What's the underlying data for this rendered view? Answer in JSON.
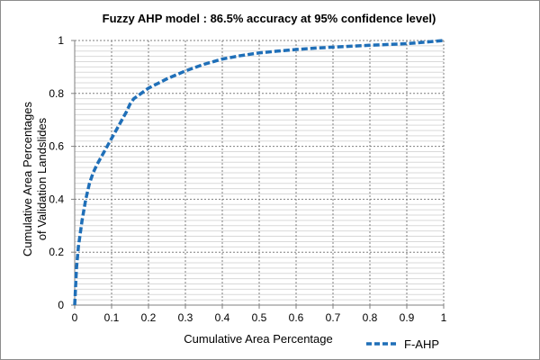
{
  "chart_data": {
    "type": "line",
    "title": "Fuzzy AHP model : 86.5% accuracy at 95% confidence level)",
    "xlabel": "Cumulative Area Percentage",
    "ylabel_lines": [
      "Cumulative Area Percentages",
      "of Validation Landslides"
    ],
    "xlim": [
      0,
      1
    ],
    "ylim": [
      0,
      1
    ],
    "x_ticks": [
      0,
      0.1,
      0.2,
      0.3,
      0.4,
      0.5,
      0.6,
      0.7,
      0.8,
      0.9,
      1
    ],
    "x_tick_labels": [
      "0",
      "0.1",
      "0.2",
      "0.3",
      "0.4",
      "0.5",
      "0.6",
      "0.7",
      "0.8",
      "0.9",
      "1"
    ],
    "y_ticks": [
      0,
      0.2,
      0.4,
      0.6,
      0.8,
      1
    ],
    "y_tick_labels": [
      "0",
      "0.2",
      "0.4",
      "0.6",
      "0.8",
      "1"
    ],
    "grid": true,
    "legend_position": "bottom-right",
    "series": [
      {
        "name": "F-AHP",
        "color": "#1f6fb8",
        "style": "dashed",
        "x": [
          0,
          0.005,
          0.01,
          0.02,
          0.03,
          0.04,
          0.05,
          0.06,
          0.08,
          0.1,
          0.12,
          0.14,
          0.15,
          0.16,
          0.18,
          0.2,
          0.25,
          0.3,
          0.35,
          0.4,
          0.45,
          0.5,
          0.55,
          0.6,
          0.65,
          0.7,
          0.8,
          0.9,
          0.95,
          1
        ],
        "y": [
          0,
          0.14,
          0.22,
          0.32,
          0.4,
          0.46,
          0.5,
          0.53,
          0.58,
          0.63,
          0.68,
          0.73,
          0.76,
          0.78,
          0.8,
          0.82,
          0.855,
          0.885,
          0.91,
          0.93,
          0.943,
          0.953,
          0.96,
          0.966,
          0.971,
          0.975,
          0.982,
          0.988,
          0.994,
          1
        ]
      }
    ]
  }
}
